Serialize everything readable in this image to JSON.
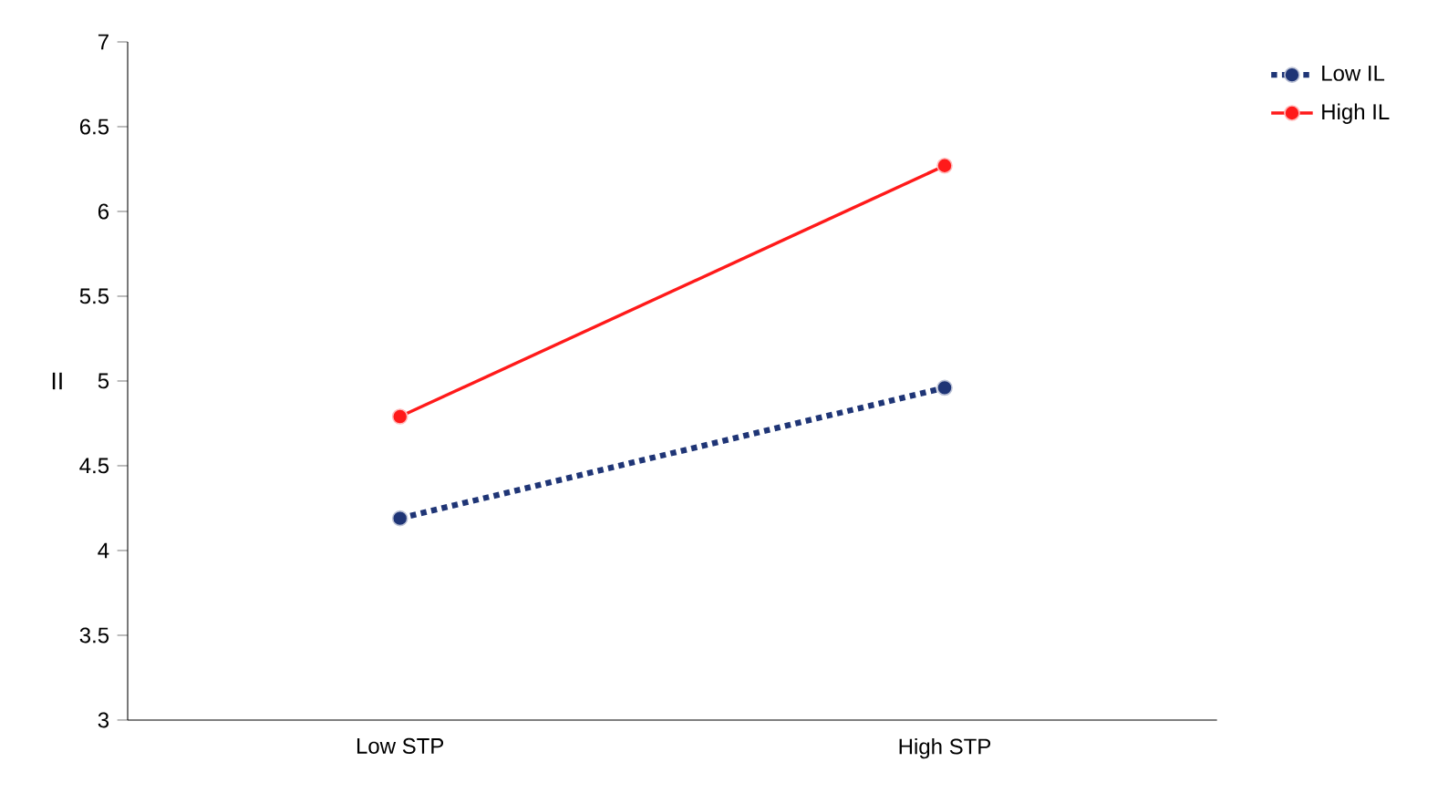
{
  "chart_data": {
    "type": "line",
    "ylabel": "II",
    "categories": [
      "Low STP",
      "High STP"
    ],
    "series": [
      {
        "name": "Low IL",
        "color": "#1f3576",
        "values": [
          4.19,
          4.96
        ],
        "line_style": "dotted"
      },
      {
        "name": "High IL",
        "color": "#ff1a1a",
        "values": [
          4.79,
          6.27
        ],
        "line_style": "solid"
      }
    ],
    "ylim": [
      3,
      7
    ],
    "yticks": [
      3,
      3.5,
      4,
      4.5,
      5,
      5.5,
      6,
      6.5,
      7
    ],
    "grid": false,
    "legend": "top right",
    "marker": "circle"
  }
}
